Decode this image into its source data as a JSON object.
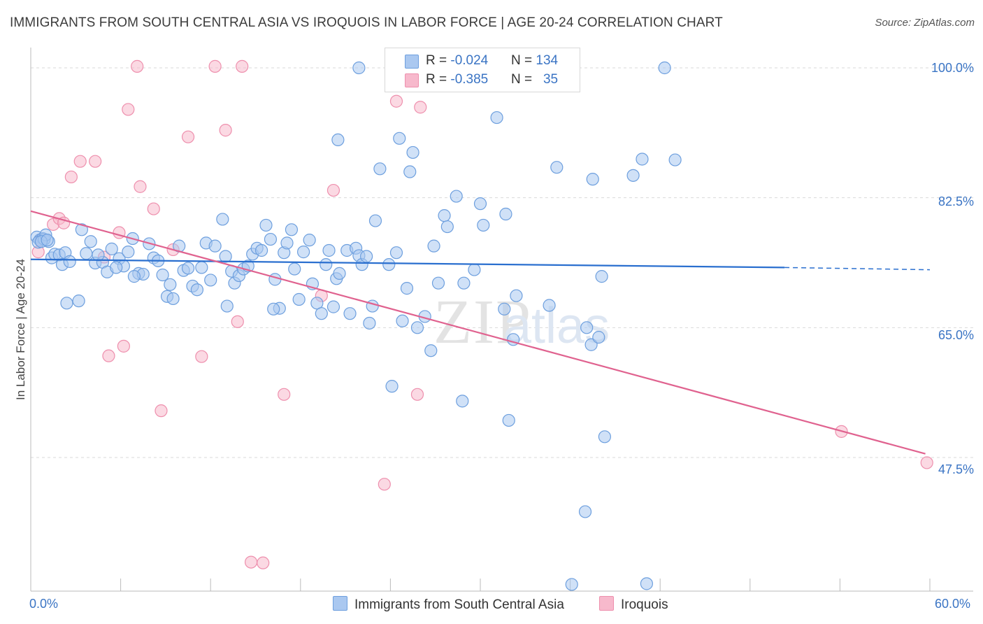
{
  "title": "IMMIGRANTS FROM SOUTH CENTRAL ASIA VS IROQUOIS IN LABOR FORCE | AGE 20-24 CORRELATION CHART",
  "source": "Source: ZipAtlas.com",
  "legend": {
    "blue": {
      "r_label": "R = ",
      "r_value": "-0.024",
      "n_label": "N = ",
      "n_value": "134"
    },
    "pink": {
      "r_label": "R = ",
      "r_value": "-0.385",
      "n_label": "N = ",
      "n_value": "35"
    }
  },
  "bottom_legend": {
    "blue": "Immigrants from South Central Asia",
    "pink": "Iroquois"
  },
  "colors": {
    "blue_fill": "#aac8f0",
    "blue_stroke": "#6d9fde",
    "blue_line": "#2a6fcf",
    "pink_fill": "#f7b9cc",
    "pink_stroke": "#ee8fad",
    "pink_line": "#e0628f",
    "grid": "#d9d9d9",
    "tick_text": "#3a74c4"
  },
  "chart_data": {
    "type": "scatter",
    "title": "IMMIGRANTS FROM SOUTH CENTRAL ASIA VS IROQUOIS IN LABOR FORCE | AGE 20-24 CORRELATION CHART",
    "xlabel": "",
    "ylabel": "In Labor Force | Age 20-24",
    "xlim": [
      0,
      60
    ],
    "ylim": [
      32.5,
      102
    ],
    "x_tick_labels": [
      "0.0%",
      "60.0%"
    ],
    "y_ticks": [
      47.5,
      65.0,
      82.5,
      100.0
    ],
    "y_tick_labels": [
      "47.5%",
      "65.0%",
      "82.5%",
      "100.0%"
    ],
    "grid": true,
    "legend_placement": "top-center",
    "watermark": "ZIPatlas",
    "series": [
      {
        "name": "Immigrants from South Central Asia",
        "R": -0.024,
        "N": 134,
        "trend": {
          "x": [
            0,
            50.3
          ],
          "y": [
            74.2,
            73.1
          ],
          "dashed_extension_x": [
            50.3,
            60
          ],
          "dashed_extension_y": [
            73.1,
            72.8
          ]
        },
        "points": [
          [
            0.4,
            77.2
          ],
          [
            0.6,
            76.8
          ],
          [
            0.8,
            77.0
          ],
          [
            0.5,
            76.5
          ],
          [
            1.2,
            76.6
          ],
          [
            0.9,
            76.9
          ],
          [
            1.4,
            74.4
          ],
          [
            1.6,
            74.9
          ],
          [
            1.9,
            74.8
          ],
          [
            2.1,
            73.5
          ],
          [
            2.3,
            75.1
          ],
          [
            2.6,
            73.9
          ],
          [
            3.4,
            78.2
          ],
          [
            4.0,
            76.6
          ],
          [
            3.7,
            75.0
          ],
          [
            4.3,
            73.7
          ],
          [
            4.8,
            73.8
          ],
          [
            5.1,
            72.5
          ],
          [
            5.4,
            75.6
          ],
          [
            5.9,
            74.3
          ],
          [
            6.2,
            73.3
          ],
          [
            6.5,
            75.2
          ],
          [
            6.8,
            77.0
          ],
          [
            7.2,
            72.3
          ],
          [
            7.5,
            72.2
          ],
          [
            7.9,
            76.3
          ],
          [
            8.2,
            74.4
          ],
          [
            8.5,
            74.0
          ],
          [
            8.8,
            72.1
          ],
          [
            9.1,
            69.2
          ],
          [
            9.3,
            70.8
          ],
          [
            9.5,
            68.9
          ],
          [
            9.9,
            76.0
          ],
          [
            10.2,
            72.7
          ],
          [
            10.5,
            73.0
          ],
          [
            10.8,
            70.6
          ],
          [
            11.1,
            70.1
          ],
          [
            11.4,
            73.1
          ],
          [
            11.7,
            76.4
          ],
          [
            12.0,
            71.4
          ],
          [
            12.3,
            76.0
          ],
          [
            12.8,
            79.6
          ],
          [
            13.1,
            67.9
          ],
          [
            13.4,
            72.6
          ],
          [
            13.6,
            71.0
          ],
          [
            13.9,
            72.0
          ],
          [
            14.2,
            72.9
          ],
          [
            14.5,
            73.3
          ],
          [
            14.8,
            74.9
          ],
          [
            15.1,
            75.7
          ],
          [
            15.4,
            75.4
          ],
          [
            15.7,
            78.8
          ],
          [
            16.0,
            76.9
          ],
          [
            16.3,
            71.5
          ],
          [
            16.6,
            67.6
          ],
          [
            16.9,
            75.1
          ],
          [
            17.1,
            76.4
          ],
          [
            17.4,
            78.2
          ],
          [
            17.6,
            72.9
          ],
          [
            17.9,
            68.8
          ],
          [
            18.2,
            75.2
          ],
          [
            18.6,
            76.8
          ],
          [
            18.8,
            70.9
          ],
          [
            19.1,
            68.3
          ],
          [
            19.4,
            66.9
          ],
          [
            19.7,
            73.5
          ],
          [
            19.9,
            75.4
          ],
          [
            20.2,
            67.8
          ],
          [
            20.4,
            71.6
          ],
          [
            20.6,
            72.3
          ],
          [
            21.1,
            75.4
          ],
          [
            21.3,
            66.9
          ],
          [
            21.7,
            75.7
          ],
          [
            21.9,
            74.7
          ],
          [
            22.1,
            73.5
          ],
          [
            22.4,
            74.6
          ],
          [
            22.6,
            65.6
          ],
          [
            22.8,
            67.9
          ],
          [
            23.0,
            79.4
          ],
          [
            23.3,
            86.4
          ],
          [
            23.9,
            73.5
          ],
          [
            24.1,
            57.1
          ],
          [
            24.4,
            75.1
          ],
          [
            24.6,
            90.5
          ],
          [
            24.8,
            65.9
          ],
          [
            25.1,
            70.3
          ],
          [
            25.3,
            86.0
          ],
          [
            25.5,
            88.6
          ],
          [
            25.8,
            65.0
          ],
          [
            26.3,
            66.5
          ],
          [
            26.7,
            61.9
          ],
          [
            26.9,
            76.0
          ],
          [
            27.2,
            71.0
          ],
          [
            27.6,
            80.1
          ],
          [
            27.8,
            78.6
          ],
          [
            28.0,
            100.1
          ],
          [
            28.4,
            82.7
          ],
          [
            28.8,
            55.1
          ],
          [
            28.9,
            71.0
          ],
          [
            29.6,
            72.8
          ],
          [
            30.0,
            81.7
          ],
          [
            30.2,
            78.8
          ],
          [
            30.4,
            100.0
          ],
          [
            31.1,
            93.3
          ],
          [
            31.7,
            80.3
          ],
          [
            31.9,
            52.5
          ],
          [
            32.2,
            63.4
          ],
          [
            32.4,
            69.3
          ],
          [
            34.6,
            68.0
          ],
          [
            35.1,
            86.6
          ],
          [
            36.1,
            30.4
          ],
          [
            37.0,
            40.2
          ],
          [
            37.1,
            65.0
          ],
          [
            37.4,
            62.7
          ],
          [
            37.5,
            85.0
          ],
          [
            37.9,
            63.7
          ],
          [
            38.1,
            71.9
          ],
          [
            38.3,
            50.3
          ],
          [
            40.2,
            85.5
          ],
          [
            40.8,
            87.7
          ],
          [
            41.1,
            30.5
          ],
          [
            43.0,
            87.6
          ],
          [
            42.3,
            100.0
          ],
          [
            1.0,
            77.5
          ],
          [
            2.4,
            68.3
          ],
          [
            0.7,
            76.6
          ],
          [
            1.1,
            76.8
          ],
          [
            3.2,
            68.6
          ],
          [
            4.5,
            74.8
          ],
          [
            5.7,
            73.1
          ],
          [
            6.9,
            71.9
          ],
          [
            13.0,
            74.6
          ],
          [
            26.0,
            100.0
          ],
          [
            16.2,
            67.5
          ],
          [
            31.6,
            67.5
          ],
          [
            33.7,
            100.0
          ],
          [
            21.9,
            100.0
          ],
          [
            20.5,
            90.3
          ]
        ]
      },
      {
        "name": "Iroquois",
        "R": -0.385,
        "N": 35,
        "trend": {
          "x": [
            0,
            59.7
          ],
          "y": [
            80.7,
            48.0
          ]
        },
        "points": [
          [
            0.5,
            75.2
          ],
          [
            0.7,
            76.9
          ],
          [
            1.5,
            78.9
          ],
          [
            1.9,
            79.7
          ],
          [
            2.2,
            79.1
          ],
          [
            2.7,
            85.3
          ],
          [
            3.3,
            87.4
          ],
          [
            4.3,
            87.4
          ],
          [
            4.9,
            74.5
          ],
          [
            5.2,
            61.2
          ],
          [
            5.9,
            77.8
          ],
          [
            6.2,
            62.5
          ],
          [
            6.5,
            94.4
          ],
          [
            7.1,
            100.2
          ],
          [
            7.3,
            84.0
          ],
          [
            8.2,
            81.0
          ],
          [
            8.7,
            53.8
          ],
          [
            9.5,
            75.5
          ],
          [
            10.5,
            90.7
          ],
          [
            11.4,
            61.1
          ],
          [
            12.3,
            100.2
          ],
          [
            13.0,
            91.6
          ],
          [
            13.8,
            65.8
          ],
          [
            14.1,
            100.2
          ],
          [
            14.7,
            33.4
          ],
          [
            15.5,
            33.3
          ],
          [
            16.9,
            56.0
          ],
          [
            19.4,
            69.3
          ],
          [
            20.2,
            83.5
          ],
          [
            23.6,
            43.9
          ],
          [
            24.4,
            95.5
          ],
          [
            25.8,
            56.0
          ],
          [
            26.0,
            94.7
          ],
          [
            54.1,
            51.0
          ],
          [
            59.8,
            46.8
          ]
        ]
      }
    ]
  }
}
